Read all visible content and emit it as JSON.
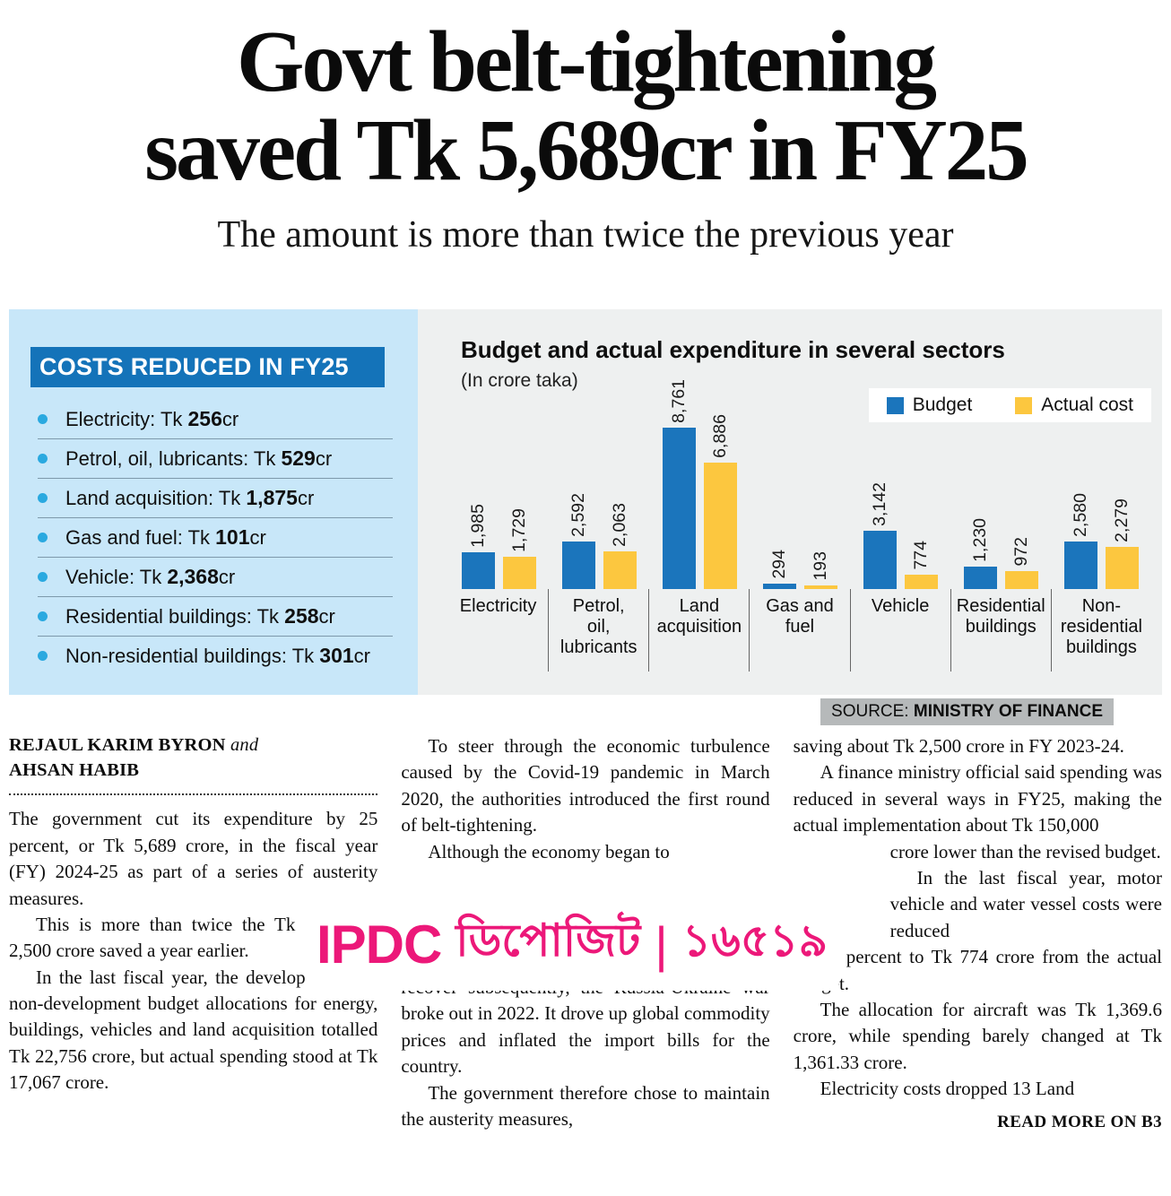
{
  "masthead": {
    "headline_line1": "Govt belt-tightening",
    "headline_line2": "saved Tk 5,689cr in FY25",
    "subheadline": "The amount is more than twice the previous year"
  },
  "costs_panel": {
    "title": "COSTS REDUCED IN FY25",
    "items": [
      {
        "prefix": "Electricity: Tk ",
        "value": "256",
        "suffix": "cr"
      },
      {
        "prefix": "Petrol, oil, lubricants: Tk ",
        "value": "529",
        "suffix": "cr"
      },
      {
        "prefix": "Land acquisition: Tk ",
        "value": "1,875",
        "suffix": "cr"
      },
      {
        "prefix": "Gas and fuel: Tk ",
        "value": "101",
        "suffix": "cr"
      },
      {
        "prefix": "Vehicle: Tk ",
        "value": "2,368",
        "suffix": "cr"
      },
      {
        "prefix": "Residential buildings: Tk ",
        "value": "258",
        "suffix": "cr"
      },
      {
        "prefix": "Non-residential buildings: Tk ",
        "value": "301",
        "suffix": "cr"
      }
    ]
  },
  "chart_data": {
    "type": "bar",
    "title": "Budget and actual expenditure in several sectors",
    "subtitle": "(In crore taka)",
    "categories": [
      "Electricity",
      "Petrol,\noil,\nlubricants",
      "Land\nacquisition",
      "Gas and\nfuel",
      "Vehicle",
      "Residential\nbuildings",
      "Non-\nresidential\nbuildings"
    ],
    "series": [
      {
        "name": "Budget",
        "color": "#1b75bc",
        "values": [
          1985,
          2592,
          8761,
          294,
          3142,
          1230,
          2580
        ],
        "labels": [
          "1,985",
          "2,592",
          "8,761",
          "294",
          "3,142",
          "1,230",
          "2,580"
        ]
      },
      {
        "name": "Actual cost",
        "color": "#fcc73f",
        "values": [
          1729,
          2063,
          6886,
          193,
          774,
          972,
          2279
        ],
        "labels": [
          "1,729",
          "2,063",
          "6,886",
          "193",
          "774",
          "972",
          "2,279"
        ]
      }
    ],
    "ylim": [
      0,
      8761
    ],
    "legend_position": "top-right",
    "grid": false,
    "value_labels": true
  },
  "source": {
    "prefix": "SOURCE: ",
    "name": "MINISTRY OF FINANCE"
  },
  "ad": {
    "brand": "IPDC",
    "word": "ডিপোজিট",
    "separator": "|",
    "number": "১৬৫১৯"
  },
  "article": {
    "byline": {
      "name1": "REJAUL KARIM BYRON",
      "and": "and",
      "name2": "AHSAN HABIB"
    },
    "col1": {
      "p1": "The government cut its expenditure by 25 percent, or Tk 5,689 crore, in the fiscal year (FY) 2024-25 as part of a series of austerity measures.",
      "p2": "This is more than twice the Tk 2,500 crore saved a year earlier.",
      "p3": "In the last fiscal year, the development and non-development budget allocations for energy, buildings, vehicles and land acquisition totalled Tk 22,756 crore, but actual spending stood at Tk 17,067 crore."
    },
    "col2": {
      "p1": "To steer through the economic turbulence caused by the Covid-19 pandemic in March 2020, the authorities introduced the first round of belt-tightening.",
      "p2": "Although the economy began to",
      "p3": "recover subsequently, the Russia-Ukraine war broke out in 2022. It drove up global commodity prices and inflated the import bills for the country.",
      "p4": "The government therefore chose to maintain the austerity measures,"
    },
    "col3": {
      "p1": "saving about Tk 2,500 crore in FY 2023-24.",
      "p2a": "A finance ministry official said spending was reduced in several ways in FY25, making the actual implementation about Tk 150,000",
      "p2b": "crore lower than the revised budget.",
      "p3a": "In the last fiscal year, motor vehicle and water vessel costs were reduced",
      "p3b": "by 75 percent to Tk 774 crore from the actual budget.",
      "p4": "The allocation for aircraft was Tk 1,369.6 crore, while spending barely changed at Tk 1,361.33 crore.",
      "p5": "Electricity costs dropped 13 Land"
    },
    "read_more": "READ MORE ON B3"
  }
}
